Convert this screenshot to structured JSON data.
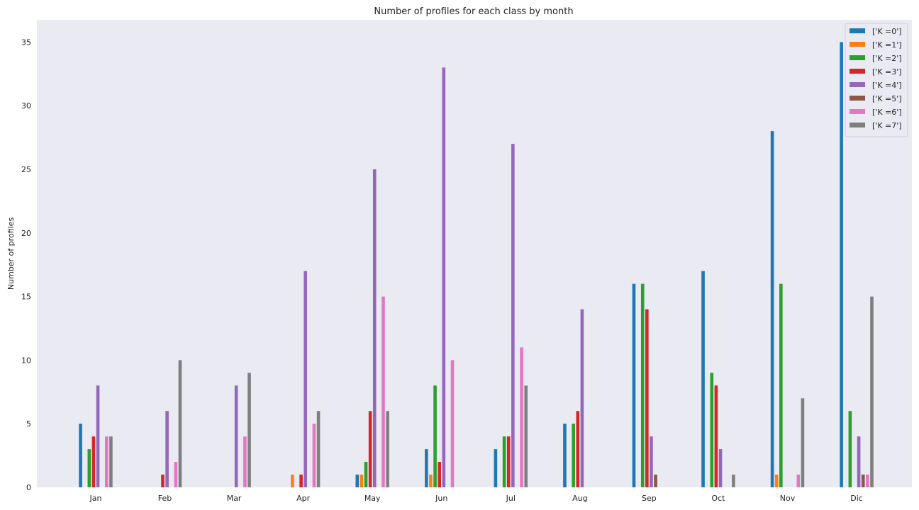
{
  "chart_data": {
    "type": "bar",
    "title": "Number of profiles for each class by month",
    "xlabel": "",
    "ylabel": "Number of profiles",
    "categories": [
      "Jan",
      "Feb",
      "Mar",
      "Apr",
      "May",
      "Jun",
      "Jul",
      "Aug",
      "Sep",
      "Oct",
      "Nov",
      "Dic"
    ],
    "ylim": [
      0,
      36.75
    ],
    "yticks": [
      0,
      5,
      10,
      15,
      20,
      25,
      30,
      35
    ],
    "grid": false,
    "legend_position": "top-right",
    "series": [
      {
        "name": "['K =0']",
        "color": "#1f77b4",
        "values": [
          5,
          0,
          0,
          0,
          1,
          3,
          3,
          5,
          16,
          17,
          28,
          35
        ]
      },
      {
        "name": "['K =1']",
        "color": "#ff7f0e",
        "values": [
          0,
          0,
          0,
          1,
          1,
          1,
          0,
          0,
          0,
          0,
          1,
          0
        ]
      },
      {
        "name": "['K =2']",
        "color": "#2ca02c",
        "values": [
          3,
          0,
          0,
          0,
          2,
          8,
          4,
          5,
          16,
          9,
          16,
          6
        ]
      },
      {
        "name": "['K =3']",
        "color": "#d62728",
        "values": [
          4,
          1,
          0,
          1,
          6,
          2,
          4,
          6,
          14,
          8,
          0,
          0
        ]
      },
      {
        "name": "['K =4']",
        "color": "#9467bd",
        "values": [
          8,
          6,
          8,
          17,
          25,
          33,
          27,
          14,
          4,
          3,
          0,
          4
        ]
      },
      {
        "name": "['K =5']",
        "color": "#8c564b",
        "values": [
          0,
          0,
          0,
          0,
          0,
          0,
          0,
          0,
          1,
          0,
          0,
          1
        ]
      },
      {
        "name": "['K =6']",
        "color": "#e377c2",
        "values": [
          4,
          2,
          4,
          5,
          15,
          10,
          11,
          0,
          0,
          0,
          1,
          1
        ]
      },
      {
        "name": "['K =7']",
        "color": "#7f7f7f",
        "values": [
          4,
          10,
          9,
          6,
          6,
          0,
          8,
          0,
          0,
          1,
          7,
          15
        ]
      }
    ]
  }
}
